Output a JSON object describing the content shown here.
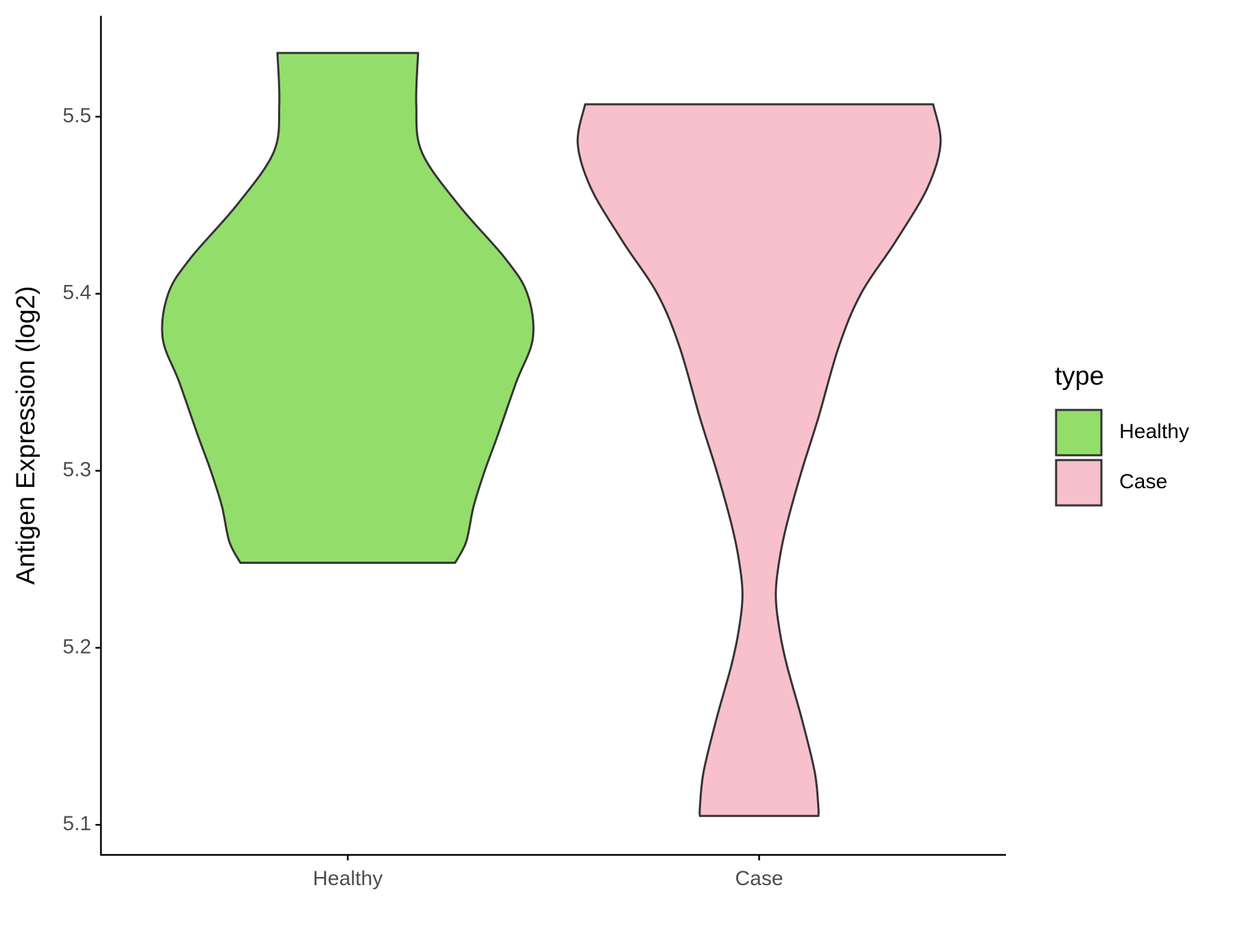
{
  "chart_data": {
    "type": "violin",
    "y_label": "Antigen Expression (log2)",
    "categories": [
      "Healthy",
      "Case"
    ],
    "legend_title": "type",
    "legend_position": "right",
    "ylim": [
      5.083,
      5.557
    ],
    "yticks": [
      5.1,
      5.2,
      5.3,
      5.4,
      5.5
    ],
    "grid": false,
    "series": [
      {
        "name": "Healthy",
        "color": "#93dd6a",
        "values": [
          5.536,
          5.507,
          5.48,
          5.45,
          5.42,
          5.4,
          5.375,
          5.35,
          5.32,
          5.3,
          5.28,
          5.26,
          5.248
        ],
        "widths": [
          0.38,
          0.37,
          0.4,
          0.6,
          0.85,
          0.97,
          1.0,
          0.91,
          0.81,
          0.74,
          0.68,
          0.64,
          0.58
        ]
      },
      {
        "name": "Case",
        "color": "#f7c0cc",
        "values": [
          5.507,
          5.485,
          5.46,
          5.43,
          5.4,
          5.37,
          5.33,
          5.3,
          5.27,
          5.25,
          5.23,
          5.21,
          5.19,
          5.16,
          5.13,
          5.11,
          5.105
        ],
        "widths": [
          0.94,
          0.98,
          0.91,
          0.74,
          0.55,
          0.43,
          0.32,
          0.23,
          0.15,
          0.11,
          0.09,
          0.11,
          0.15,
          0.23,
          0.3,
          0.32,
          0.32
        ]
      }
    ]
  }
}
